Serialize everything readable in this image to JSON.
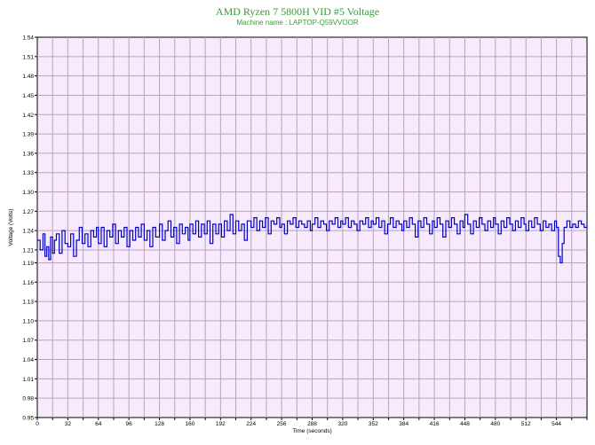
{
  "chart_data": {
    "type": "line",
    "title": "AMD Ryzen 7 5800H VID #5 Voltage",
    "subtitle": "Machine name : LAPTOP-Q59VVOOR",
    "xlabel": "Time (seconds)",
    "ylabel": "Voltage (Volts)",
    "xlim": [
      0,
      576
    ],
    "ylim": [
      0.95,
      1.54
    ],
    "xticks": [
      0,
      32,
      64,
      96,
      128,
      160,
      192,
      224,
      256,
      288,
      320,
      352,
      384,
      416,
      448,
      480,
      512,
      544
    ],
    "yticks": [
      "0.95",
      "0.98",
      "1.01",
      "1.04",
      "1.07",
      "1.10",
      "1.13",
      "1.16",
      "1.19",
      "1.21",
      "1.24",
      "1.27",
      "1.30",
      "1.33",
      "1.36",
      "1.39",
      "1.42",
      "1.45",
      "1.48",
      "1.51",
      "1.54"
    ],
    "grid": true,
    "colors": {
      "title": "#3a9a3a",
      "background": "#f7eaff",
      "grid": "#b9a3b9",
      "line": "#0000c8",
      "axis": "#000000"
    },
    "series": [
      {
        "values": [
          [
            0,
            1.225
          ],
          [
            3,
            1.21
          ],
          [
            6,
            1.235
          ],
          [
            8,
            1.2
          ],
          [
            10,
            1.215
          ],
          [
            12,
            1.195
          ],
          [
            14,
            1.23
          ],
          [
            16,
            1.205
          ],
          [
            18,
            1.225
          ],
          [
            20,
            1.235
          ],
          [
            23,
            1.205
          ],
          [
            26,
            1.24
          ],
          [
            29,
            1.22
          ],
          [
            32,
            1.215
          ],
          [
            35,
            1.235
          ],
          [
            38,
            1.2
          ],
          [
            41,
            1.225
          ],
          [
            44,
            1.245
          ],
          [
            47,
            1.22
          ],
          [
            50,
            1.235
          ],
          [
            53,
            1.215
          ],
          [
            56,
            1.24
          ],
          [
            59,
            1.23
          ],
          [
            62,
            1.245
          ],
          [
            64,
            1.22
          ],
          [
            67,
            1.245
          ],
          [
            70,
            1.215
          ],
          [
            73,
            1.24
          ],
          [
            76,
            1.23
          ],
          [
            79,
            1.25
          ],
          [
            82,
            1.22
          ],
          [
            85,
            1.24
          ],
          [
            88,
            1.23
          ],
          [
            91,
            1.245
          ],
          [
            94,
            1.215
          ],
          [
            97,
            1.24
          ],
          [
            100,
            1.225
          ],
          [
            103,
            1.245
          ],
          [
            106,
            1.23
          ],
          [
            109,
            1.25
          ],
          [
            112,
            1.225
          ],
          [
            115,
            1.24
          ],
          [
            118,
            1.215
          ],
          [
            121,
            1.245
          ],
          [
            124,
            1.23
          ],
          [
            128,
            1.25
          ],
          [
            131,
            1.225
          ],
          [
            134,
            1.24
          ],
          [
            137,
            1.255
          ],
          [
            140,
            1.23
          ],
          [
            143,
            1.245
          ],
          [
            146,
            1.22
          ],
          [
            149,
            1.25
          ],
          [
            152,
            1.235
          ],
          [
            155,
            1.245
          ],
          [
            158,
            1.225
          ],
          [
            160,
            1.25
          ],
          [
            163,
            1.235
          ],
          [
            166,
            1.255
          ],
          [
            169,
            1.23
          ],
          [
            172,
            1.25
          ],
          [
            175,
            1.235
          ],
          [
            178,
            1.255
          ],
          [
            181,
            1.22
          ],
          [
            184,
            1.25
          ],
          [
            187,
            1.235
          ],
          [
            190,
            1.25
          ],
          [
            193,
            1.23
          ],
          [
            196,
            1.255
          ],
          [
            199,
            1.24
          ],
          [
            202,
            1.265
          ],
          [
            205,
            1.235
          ],
          [
            208,
            1.255
          ],
          [
            211,
            1.24
          ],
          [
            214,
            1.25
          ],
          [
            217,
            1.225
          ],
          [
            220,
            1.255
          ],
          [
            224,
            1.245
          ],
          [
            227,
            1.26
          ],
          [
            230,
            1.24
          ],
          [
            233,
            1.255
          ],
          [
            236,
            1.245
          ],
          [
            239,
            1.26
          ],
          [
            242,
            1.235
          ],
          [
            245,
            1.255
          ],
          [
            248,
            1.25
          ],
          [
            251,
            1.26
          ],
          [
            254,
            1.245
          ],
          [
            256,
            1.25
          ],
          [
            259,
            1.235
          ],
          [
            262,
            1.255
          ],
          [
            265,
            1.25
          ],
          [
            268,
            1.26
          ],
          [
            271,
            1.245
          ],
          [
            274,
            1.255
          ],
          [
            277,
            1.25
          ],
          [
            280,
            1.245
          ],
          [
            283,
            1.255
          ],
          [
            286,
            1.24
          ],
          [
            288,
            1.25
          ],
          [
            291,
            1.26
          ],
          [
            294,
            1.245
          ],
          [
            297,
            1.255
          ],
          [
            300,
            1.25
          ],
          [
            303,
            1.24
          ],
          [
            306,
            1.255
          ],
          [
            309,
            1.25
          ],
          [
            312,
            1.26
          ],
          [
            315,
            1.245
          ],
          [
            318,
            1.255
          ],
          [
            320,
            1.25
          ],
          [
            323,
            1.26
          ],
          [
            326,
            1.245
          ],
          [
            329,
            1.255
          ],
          [
            332,
            1.25
          ],
          [
            335,
            1.24
          ],
          [
            338,
            1.255
          ],
          [
            341,
            1.25
          ],
          [
            344,
            1.26
          ],
          [
            347,
            1.245
          ],
          [
            350,
            1.255
          ],
          [
            352,
            1.25
          ],
          [
            355,
            1.26
          ],
          [
            358,
            1.245
          ],
          [
            361,
            1.255
          ],
          [
            364,
            1.235
          ],
          [
            367,
            1.25
          ],
          [
            370,
            1.26
          ],
          [
            373,
            1.245
          ],
          [
            376,
            1.255
          ],
          [
            379,
            1.25
          ],
          [
            382,
            1.24
          ],
          [
            384,
            1.255
          ],
          [
            387,
            1.245
          ],
          [
            390,
            1.26
          ],
          [
            393,
            1.25
          ],
          [
            396,
            1.23
          ],
          [
            399,
            1.255
          ],
          [
            402,
            1.245
          ],
          [
            405,
            1.26
          ],
          [
            408,
            1.25
          ],
          [
            411,
            1.235
          ],
          [
            414,
            1.255
          ],
          [
            416,
            1.245
          ],
          [
            419,
            1.26
          ],
          [
            422,
            1.25
          ],
          [
            425,
            1.23
          ],
          [
            428,
            1.255
          ],
          [
            431,
            1.245
          ],
          [
            434,
            1.26
          ],
          [
            437,
            1.25
          ],
          [
            440,
            1.235
          ],
          [
            443,
            1.255
          ],
          [
            446,
            1.245
          ],
          [
            448,
            1.265
          ],
          [
            451,
            1.25
          ],
          [
            454,
            1.235
          ],
          [
            457,
            1.255
          ],
          [
            460,
            1.245
          ],
          [
            463,
            1.26
          ],
          [
            466,
            1.25
          ],
          [
            469,
            1.24
          ],
          [
            472,
            1.255
          ],
          [
            475,
            1.245
          ],
          [
            478,
            1.26
          ],
          [
            480,
            1.25
          ],
          [
            483,
            1.235
          ],
          [
            486,
            1.255
          ],
          [
            489,
            1.245
          ],
          [
            492,
            1.26
          ],
          [
            495,
            1.25
          ],
          [
            498,
            1.24
          ],
          [
            501,
            1.255
          ],
          [
            504,
            1.245
          ],
          [
            507,
            1.26
          ],
          [
            510,
            1.25
          ],
          [
            512,
            1.24
          ],
          [
            515,
            1.255
          ],
          [
            518,
            1.245
          ],
          [
            521,
            1.26
          ],
          [
            524,
            1.25
          ],
          [
            527,
            1.24
          ],
          [
            530,
            1.255
          ],
          [
            533,
            1.245
          ],
          [
            536,
            1.25
          ],
          [
            539,
            1.24
          ],
          [
            542,
            1.255
          ],
          [
            544,
            1.245
          ],
          [
            546,
            1.2
          ],
          [
            548,
            1.19
          ],
          [
            550,
            1.22
          ],
          [
            552,
            1.245
          ],
          [
            555,
            1.255
          ],
          [
            558,
            1.245
          ],
          [
            561,
            1.25
          ],
          [
            564,
            1.245
          ],
          [
            567,
            1.255
          ],
          [
            570,
            1.25
          ],
          [
            573,
            1.245
          ],
          [
            576,
            1.25
          ]
        ]
      }
    ]
  }
}
